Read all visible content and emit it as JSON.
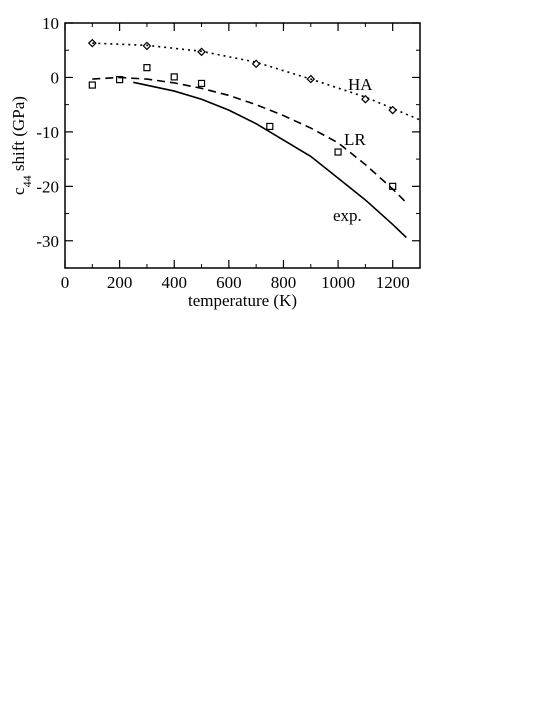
{
  "chart_data": {
    "type": "line",
    "x_label": "temperature (K)",
    "y_label": [
      "c",
      "44",
      " shift (GPa)"
    ],
    "xlim": [
      0,
      1300
    ],
    "xticks": [
      0,
      200,
      400,
      600,
      800,
      1000,
      1200
    ],
    "ylim": [
      -35,
      10
    ],
    "yticks": [
      -30,
      -20,
      -10,
      0,
      10
    ],
    "series": [
      {
        "name": "HA",
        "color": "#000000",
        "dash": "dotted",
        "x": [
          100,
          300,
          500,
          700,
          900,
          1100,
          1300
        ],
        "values": [
          6.3,
          5.9,
          4.8,
          2.8,
          -0.3,
          -3.6,
          -7.8
        ],
        "points": {
          "marker": "diamond",
          "x": [
            100,
            300,
            500,
            700,
            900,
            1100,
            1200
          ],
          "values": [
            6.3,
            5.8,
            4.7,
            2.5,
            -0.3,
            -4,
            -6
          ]
        }
      },
      {
        "name": "LR",
        "color": "#000000",
        "dash": "dashed",
        "x": [
          100,
          200,
          300,
          400,
          500,
          600,
          700,
          800,
          900,
          1000,
          1100,
          1200,
          1250
        ],
        "values": [
          -0.3,
          0,
          -0.3,
          -1,
          -2,
          -3.3,
          -5,
          -7,
          -9.3,
          -12,
          -16,
          -20.5,
          -23
        ],
        "points": {
          "marker": "square",
          "x": [
            100,
            200,
            300,
            400,
            500,
            750,
            1000,
            1200
          ],
          "values": [
            -1.4,
            -0.4,
            1.8,
            0.1,
            -1.1,
            -9,
            -13.7,
            -20
          ]
        }
      },
      {
        "name": "exp.",
        "color": "#000000",
        "dash": "solid",
        "x": [
          250,
          400,
          500,
          600,
          700,
          800,
          900,
          1000,
          1100,
          1200,
          1250
        ],
        "values": [
          -0.9,
          -2.5,
          -4,
          -6,
          -8.5,
          -11.5,
          -14.5,
          -18.5,
          -22.5,
          -27,
          -29.4
        ]
      }
    ]
  }
}
